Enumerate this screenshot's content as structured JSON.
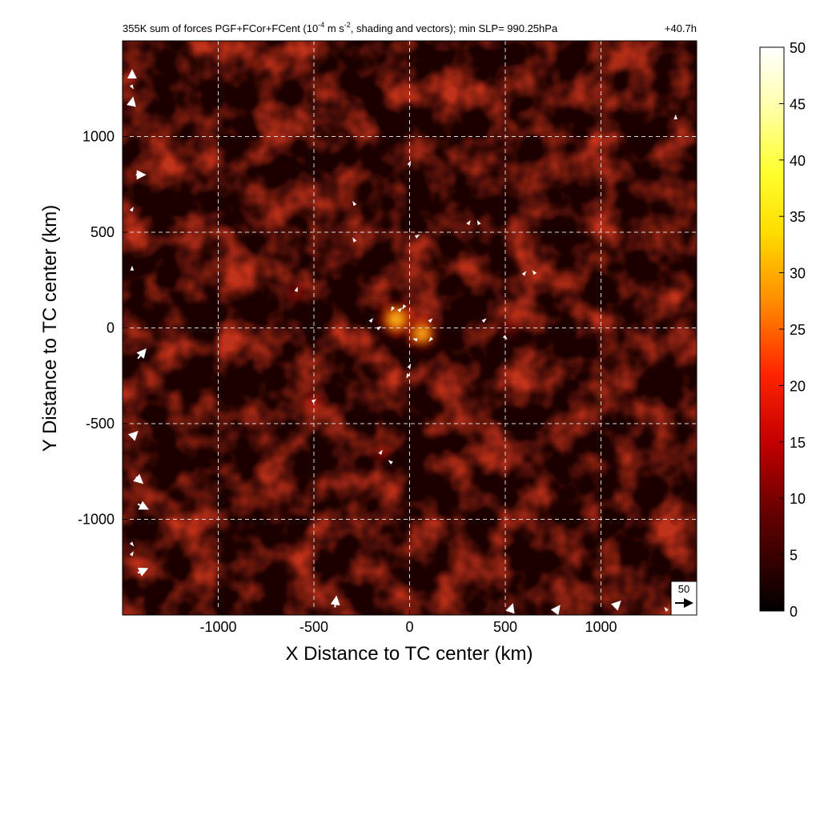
{
  "chart_data": {
    "type": "heatmap",
    "title": "355K sum of forces PGF+FCor+FCent (10",
    "title_units_exp1": "-4",
    "title_units_mid": " m s",
    "title_units_exp2": "-2",
    "title_tail": ", shading and vectors); min SLP= 990.25hPa",
    "time_label": "+40.7h",
    "xlabel": "X Distance to TC center (km)",
    "ylabel": "Y Distance to TC center (km)",
    "xlim": [
      -1500,
      1500
    ],
    "ylim": [
      -1500,
      1500
    ],
    "xticks": [
      -1000,
      -500,
      0,
      500,
      1000
    ],
    "yticks": [
      -1000,
      -500,
      0,
      500,
      1000
    ],
    "grid": true,
    "colorbar": {
      "min": 0,
      "max": 50,
      "ticks": [
        0,
        5,
        10,
        15,
        20,
        25,
        30,
        35,
        40,
        45,
        50
      ],
      "colormap": "hot",
      "colors": [
        "#000000",
        "#8b0000",
        "#e00000",
        "#ff6a00",
        "#ffd700",
        "#ffff40",
        "#ffffff"
      ]
    },
    "reference_vector": {
      "value": 50,
      "label": "50"
    },
    "hotspots": [
      {
        "x": -70,
        "y": 45,
        "value": 35
      },
      {
        "x": 65,
        "y": -30,
        "value": 28
      },
      {
        "x": -590,
        "y": 185,
        "value": 14
      },
      {
        "x": 520,
        "y": -10,
        "value": 12
      },
      {
        "x": -500,
        "y": -380,
        "value": 10
      },
      {
        "x": -140,
        "y": -660,
        "value": 10
      }
    ],
    "vectors": [
      {
        "x": -1450,
        "y": 1320,
        "u": 0,
        "v": 12
      },
      {
        "x": -1450,
        "y": 1180,
        "u": 2,
        "v": 10
      },
      {
        "x": -1430,
        "y": 800,
        "u": 25,
        "v": 0
      },
      {
        "x": -1450,
        "y": 310,
        "u": 0,
        "v": 8
      },
      {
        "x": -1420,
        "y": -160,
        "u": 22,
        "v": 26
      },
      {
        "x": -1440,
        "y": -560,
        "u": 8,
        "v": 8
      },
      {
        "x": -1430,
        "y": -780,
        "u": 18,
        "v": -16
      },
      {
        "x": -1420,
        "y": -920,
        "u": 28,
        "v": -14
      },
      {
        "x": -1420,
        "y": -1280,
        "u": 26,
        "v": 12
      },
      {
        "x": -390,
        "y": -1460,
        "u": 4,
        "v": 30
      },
      {
        "x": 530,
        "y": -1470,
        "u": 4,
        "v": 12
      },
      {
        "x": 1070,
        "y": -1460,
        "u": 16,
        "v": 16
      },
      {
        "x": 770,
        "y": -1470,
        "u": 6,
        "v": 8
      },
      {
        "x": -290,
        "y": 650,
        "u": -3,
        "v": 5
      },
      {
        "x": -290,
        "y": 460,
        "u": -3,
        "v": 5
      },
      {
        "x": 310,
        "y": 550,
        "u": 4,
        "v": 6
      },
      {
        "x": 360,
        "y": 550,
        "u": -3,
        "v": 6
      },
      {
        "x": 600,
        "y": 285,
        "u": 4,
        "v": 5
      },
      {
        "x": 650,
        "y": 290,
        "u": -4,
        "v": 5
      },
      {
        "x": -590,
        "y": 200,
        "u": 2,
        "v": 6
      },
      {
        "x": -200,
        "y": 40,
        "u": 4,
        "v": 5
      },
      {
        "x": -160,
        "y": 0,
        "u": 5,
        "v": 3
      },
      {
        "x": -90,
        "y": 100,
        "u": -3,
        "v": -6
      },
      {
        "x": -50,
        "y": 95,
        "u": 5,
        "v": 5
      },
      {
        "x": -30,
        "y": 110,
        "u": -3,
        "v": -5
      },
      {
        "x": 110,
        "y": 40,
        "u": 5,
        "v": 5
      },
      {
        "x": 110,
        "y": -60,
        "u": -4,
        "v": -5
      },
      {
        "x": 30,
        "y": -60,
        "u": -6,
        "v": 2
      },
      {
        "x": 0,
        "y": -200,
        "u": 3,
        "v": 6
      },
      {
        "x": -10,
        "y": -250,
        "u": -3,
        "v": -6
      },
      {
        "x": -150,
        "y": -650,
        "u": 4,
        "v": 6
      },
      {
        "x": -100,
        "y": -700,
        "u": -5,
        "v": 4
      },
      {
        "x": 500,
        "y": -50,
        "u": 4,
        "v": -4
      },
      {
        "x": 0,
        "y": 860,
        "u": 2,
        "v": 5
      },
      {
        "x": 40,
        "y": 480,
        "u": 5,
        "v": 3
      },
      {
        "x": -500,
        "y": -380,
        "u": 5,
        "v": 3
      },
      {
        "x": 390,
        "y": 40,
        "u": 5,
        "v": 4
      },
      {
        "x": -1450,
        "y": 1260,
        "u": 4,
        "v": -6
      },
      {
        "x": -1450,
        "y": 620,
        "u": 3,
        "v": 5
      },
      {
        "x": -1450,
        "y": -1130,
        "u": 4,
        "v": -5
      },
      {
        "x": -1450,
        "y": -1180,
        "u": 3,
        "v": 5
      },
      {
        "x": 1390,
        "y": 1100,
        "u": 0,
        "v": 6
      },
      {
        "x": 1380,
        "y": -1460,
        "u": 4,
        "v": 6
      },
      {
        "x": 1340,
        "y": -1470,
        "u": -4,
        "v": 5
      }
    ]
  }
}
